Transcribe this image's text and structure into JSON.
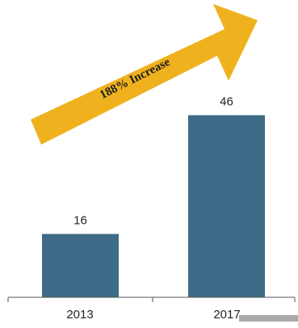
{
  "chart_data": {
    "type": "bar",
    "categories": [
      "2013",
      "2017"
    ],
    "values": [
      16,
      46
    ],
    "title": "",
    "xlabel": "",
    "ylabel": "",
    "ylim": [
      0,
      50
    ],
    "grid": false,
    "bar_color": "#3e6b87",
    "annotations": [
      {
        "text": "188% Increase",
        "kind": "arrow",
        "color": "#efb21e"
      }
    ]
  }
}
